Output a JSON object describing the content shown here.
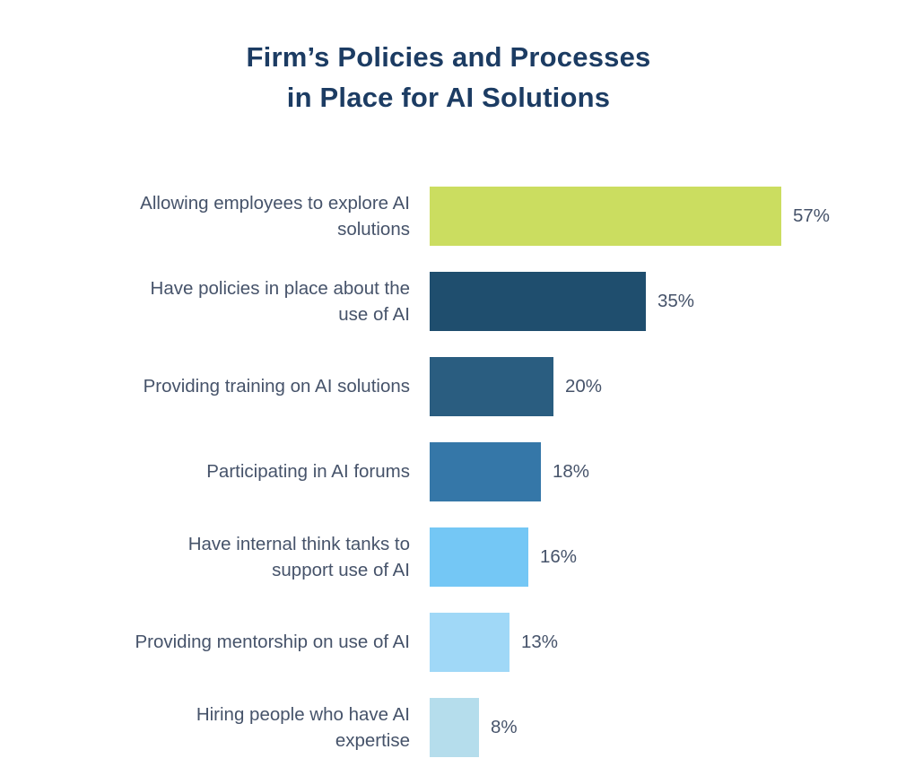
{
  "header": {
    "title_line1": "Firm’s Policies and Processes",
    "title_line2": "in Place for AI Solutions"
  },
  "chart_data": {
    "type": "bar",
    "orientation": "horizontal",
    "title": "Firm’s Policies and Processes in Place for AI Solutions",
    "categories": [
      "Allowing employees to explore AI\nsolutions",
      "Have policies in place about the\nuse of AI",
      "Providing training on AI solutions",
      "Participating in AI forums",
      "Have internal think tanks to\nsupport use of AI",
      "Providing mentorship on use of AI",
      "Hiring people who have AI\nexpertise"
    ],
    "values": [
      57,
      35,
      20,
      18,
      16,
      13,
      8
    ],
    "value_labels": [
      "57%",
      "35%",
      "20%",
      "18%",
      "16%",
      "13%",
      "8%"
    ],
    "bar_colors": [
      "#cbdd60",
      "#1f4e6e",
      "#2a5d80",
      "#3577a8",
      "#74c7f5",
      "#a0d8f7",
      "#b5ddec"
    ],
    "unit": "%",
    "xlim": [
      0,
      60
    ],
    "grid": false,
    "legend": false,
    "axes_hidden": true,
    "colors": {
      "title": "#1c3c63",
      "label": "#46536a",
      "background": "#ffffff"
    }
  }
}
